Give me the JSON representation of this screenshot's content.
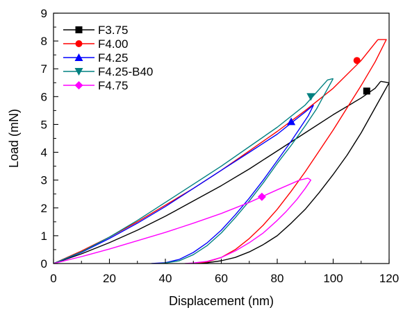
{
  "chart_data": {
    "type": "line",
    "xlabel": "Displacement (nm)",
    "ylabel": "Load (mN)",
    "xlim": [
      0,
      120
    ],
    "ylim": [
      0,
      9
    ],
    "xticks": [
      "0",
      "20",
      "40",
      "60",
      "80",
      "100",
      "120"
    ],
    "yticks": [
      "0",
      "1",
      "2",
      "3",
      "4",
      "5",
      "6",
      "7",
      "8",
      "9"
    ],
    "grid": false,
    "legend_position": "top-left",
    "series": [
      {
        "name": "F3.75",
        "color": "#000000",
        "marker": "square",
        "loading": [
          [
            0,
            0
          ],
          [
            10,
            0.35
          ],
          [
            20,
            0.75
          ],
          [
            30,
            1.2
          ],
          [
            40,
            1.7
          ],
          [
            50,
            2.25
          ],
          [
            60,
            2.8
          ],
          [
            70,
            3.4
          ],
          [
            80,
            4.05
          ],
          [
            90,
            4.7
          ],
          [
            100,
            5.35
          ],
          [
            110,
            5.95
          ],
          [
            115,
            6.3
          ],
          [
            117,
            6.55
          ]
        ],
        "unloading": [
          [
            117,
            6.55
          ],
          [
            120,
            6.5
          ],
          [
            115,
            5.6
          ],
          [
            110,
            4.7
          ],
          [
            105,
            3.9
          ],
          [
            100,
            3.2
          ],
          [
            95,
            2.55
          ],
          [
            90,
            1.95
          ],
          [
            85,
            1.45
          ],
          [
            80,
            1.0
          ],
          [
            75,
            0.68
          ],
          [
            70,
            0.42
          ],
          [
            65,
            0.22
          ],
          [
            60,
            0.1
          ],
          [
            55,
            0.03
          ],
          [
            52,
            0
          ]
        ],
        "marker_at": [
          112,
          6.2
        ]
      },
      {
        "name": "F4.00",
        "color": "#ff0000",
        "marker": "circle",
        "loading": [
          [
            0,
            0
          ],
          [
            10,
            0.45
          ],
          [
            20,
            0.95
          ],
          [
            30,
            1.5
          ],
          [
            40,
            2.1
          ],
          [
            50,
            2.7
          ],
          [
            60,
            3.35
          ],
          [
            70,
            4.05
          ],
          [
            80,
            4.75
          ],
          [
            90,
            5.5
          ],
          [
            100,
            6.3
          ],
          [
            110,
            7.3
          ],
          [
            116,
            8.05
          ]
        ],
        "unloading": [
          [
            116,
            8.05
          ],
          [
            119,
            8.05
          ],
          [
            115,
            7.25
          ],
          [
            110,
            6.4
          ],
          [
            105,
            5.6
          ],
          [
            100,
            4.8
          ],
          [
            95,
            4.05
          ],
          [
            90,
            3.3
          ],
          [
            85,
            2.6
          ],
          [
            80,
            1.95
          ],
          [
            75,
            1.38
          ],
          [
            70,
            0.9
          ],
          [
            65,
            0.5
          ],
          [
            60,
            0.22
          ],
          [
            55,
            0.06
          ],
          [
            50,
            0
          ]
        ],
        "marker_at": [
          108.5,
          7.3
        ]
      },
      {
        "name": "F4.25",
        "color": "#0000ff",
        "marker": "triangle-up",
        "loading": [
          [
            0,
            0
          ],
          [
            10,
            0.4
          ],
          [
            20,
            0.9
          ],
          [
            30,
            1.45
          ],
          [
            40,
            2.05
          ],
          [
            50,
            2.7
          ],
          [
            60,
            3.35
          ],
          [
            70,
            4.0
          ],
          [
            80,
            4.65
          ],
          [
            85,
            5.05
          ],
          [
            90,
            5.45
          ],
          [
            93,
            5.7
          ]
        ],
        "unloading": [
          [
            93,
            5.7
          ],
          [
            91,
            5.3
          ],
          [
            88,
            4.85
          ],
          [
            85,
            4.4
          ],
          [
            80,
            3.7
          ],
          [
            75,
            3.0
          ],
          [
            70,
            2.35
          ],
          [
            65,
            1.75
          ],
          [
            60,
            1.2
          ],
          [
            55,
            0.75
          ],
          [
            50,
            0.4
          ],
          [
            45,
            0.15
          ],
          [
            40,
            0.03
          ],
          [
            35,
            0
          ]
        ],
        "marker_at": [
          85,
          5.1
        ]
      },
      {
        "name": "F4.25-B40",
        "color": "#008080",
        "marker": "triangle-down",
        "loading": [
          [
            0,
            0
          ],
          [
            10,
            0.42
          ],
          [
            20,
            0.95
          ],
          [
            30,
            1.55
          ],
          [
            40,
            2.2
          ],
          [
            50,
            2.85
          ],
          [
            60,
            3.5
          ],
          [
            70,
            4.2
          ],
          [
            80,
            4.9
          ],
          [
            90,
            5.7
          ],
          [
            98,
            6.6
          ],
          [
            100,
            6.65
          ]
        ],
        "unloading": [
          [
            100,
            6.65
          ],
          [
            97,
            6.1
          ],
          [
            94,
            5.55
          ],
          [
            90,
            4.95
          ],
          [
            85,
            4.25
          ],
          [
            80,
            3.6
          ],
          [
            75,
            2.9
          ],
          [
            70,
            2.25
          ],
          [
            65,
            1.65
          ],
          [
            60,
            1.1
          ],
          [
            55,
            0.65
          ],
          [
            50,
            0.32
          ],
          [
            45,
            0.1
          ],
          [
            40,
            0.02
          ],
          [
            38,
            0
          ]
        ],
        "marker_at": [
          92,
          6.0
        ]
      },
      {
        "name": "F4.75",
        "color": "#ff00ff",
        "marker": "diamond",
        "loading": [
          [
            0,
            0
          ],
          [
            10,
            0.25
          ],
          [
            20,
            0.52
          ],
          [
            30,
            0.82
          ],
          [
            40,
            1.12
          ],
          [
            50,
            1.45
          ],
          [
            60,
            1.8
          ],
          [
            70,
            2.2
          ],
          [
            80,
            2.65
          ],
          [
            88,
            3.0
          ],
          [
            91,
            3.07
          ]
        ],
        "unloading": [
          [
            91,
            3.07
          ],
          [
            92,
            3.0
          ],
          [
            90,
            2.7
          ],
          [
            87,
            2.3
          ],
          [
            83,
            1.85
          ],
          [
            80,
            1.55
          ],
          [
            75,
            1.1
          ],
          [
            70,
            0.75
          ],
          [
            65,
            0.45
          ],
          [
            60,
            0.22
          ],
          [
            55,
            0.08
          ],
          [
            50,
            0.02
          ],
          [
            47,
            0
          ]
        ],
        "marker_at": [
          74.5,
          2.4
        ]
      }
    ]
  }
}
